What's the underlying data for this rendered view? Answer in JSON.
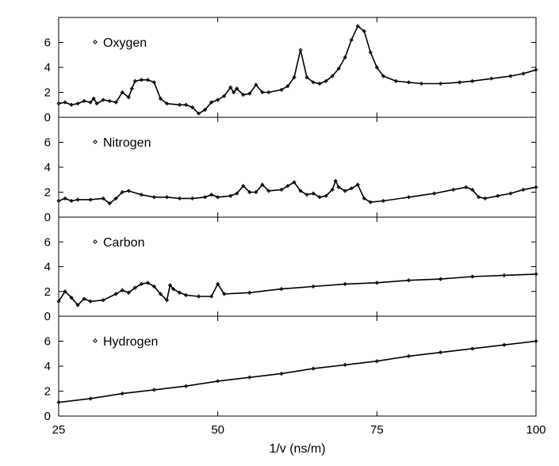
{
  "chart_data": {
    "type": "scatter",
    "layout": "stacked-panels",
    "xlabel": "1/v (ns/m)",
    "xlim": [
      25,
      100
    ],
    "x_ticks": [
      "25",
      "50",
      "75",
      "100"
    ],
    "ylim": [
      0,
      8
    ],
    "y_ticks": [
      "0",
      "2",
      "4",
      "6"
    ],
    "legend_position": "top-left",
    "marker": "diamond",
    "panels": [
      {
        "name": "Oxygen",
        "series": [
          {
            "x": 25,
            "y": 1.1
          },
          {
            "x": 26,
            "y": 1.2
          },
          {
            "x": 27,
            "y": 1.0
          },
          {
            "x": 28,
            "y": 1.1
          },
          {
            "x": 29,
            "y": 1.3
          },
          {
            "x": 30,
            "y": 1.2
          },
          {
            "x": 30.5,
            "y": 1.5
          },
          {
            "x": 31,
            "y": 1.1
          },
          {
            "x": 32,
            "y": 1.4
          },
          {
            "x": 33,
            "y": 1.3
          },
          {
            "x": 34,
            "y": 1.2
          },
          {
            "x": 35,
            "y": 2.0
          },
          {
            "x": 36,
            "y": 1.6
          },
          {
            "x": 36.5,
            "y": 2.3
          },
          {
            "x": 37,
            "y": 2.9
          },
          {
            "x": 38,
            "y": 3.0
          },
          {
            "x": 39,
            "y": 3.0
          },
          {
            "x": 40,
            "y": 2.8
          },
          {
            "x": 41,
            "y": 1.5
          },
          {
            "x": 42,
            "y": 1.1
          },
          {
            "x": 44,
            "y": 1.0
          },
          {
            "x": 45,
            "y": 1.0
          },
          {
            "x": 46,
            "y": 0.8
          },
          {
            "x": 47,
            "y": 0.3
          },
          {
            "x": 48,
            "y": 0.6
          },
          {
            "x": 49,
            "y": 1.2
          },
          {
            "x": 50,
            "y": 1.4
          },
          {
            "x": 51,
            "y": 1.7
          },
          {
            "x": 52,
            "y": 2.4
          },
          {
            "x": 52.5,
            "y": 2.0
          },
          {
            "x": 53,
            "y": 2.3
          },
          {
            "x": 54,
            "y": 1.8
          },
          {
            "x": 55,
            "y": 1.9
          },
          {
            "x": 56,
            "y": 2.6
          },
          {
            "x": 57,
            "y": 2.0
          },
          {
            "x": 58,
            "y": 2.0
          },
          {
            "x": 60,
            "y": 2.2
          },
          {
            "x": 61,
            "y": 2.5
          },
          {
            "x": 62,
            "y": 3.2
          },
          {
            "x": 63,
            "y": 5.4
          },
          {
            "x": 64,
            "y": 3.2
          },
          {
            "x": 65,
            "y": 2.8
          },
          {
            "x": 66,
            "y": 2.7
          },
          {
            "x": 67,
            "y": 2.9
          },
          {
            "x": 68,
            "y": 3.3
          },
          {
            "x": 69,
            "y": 3.9
          },
          {
            "x": 70,
            "y": 4.8
          },
          {
            "x": 71,
            "y": 6.2
          },
          {
            "x": 72,
            "y": 7.3
          },
          {
            "x": 73,
            "y": 6.9
          },
          {
            "x": 74,
            "y": 5.2
          },
          {
            "x": 75,
            "y": 4.0
          },
          {
            "x": 76,
            "y": 3.3
          },
          {
            "x": 78,
            "y": 2.9
          },
          {
            "x": 80,
            "y": 2.8
          },
          {
            "x": 82,
            "y": 2.7
          },
          {
            "x": 85,
            "y": 2.7
          },
          {
            "x": 88,
            "y": 2.8
          },
          {
            "x": 90,
            "y": 2.9
          },
          {
            "x": 93,
            "y": 3.1
          },
          {
            "x": 96,
            "y": 3.3
          },
          {
            "x": 98,
            "y": 3.5
          },
          {
            "x": 100,
            "y": 3.8
          }
        ]
      },
      {
        "name": "Nitrogen",
        "series": [
          {
            "x": 25,
            "y": 1.3
          },
          {
            "x": 26,
            "y": 1.5
          },
          {
            "x": 27,
            "y": 1.3
          },
          {
            "x": 28,
            "y": 1.4
          },
          {
            "x": 30,
            "y": 1.4
          },
          {
            "x": 32,
            "y": 1.5
          },
          {
            "x": 33,
            "y": 1.1
          },
          {
            "x": 34,
            "y": 1.5
          },
          {
            "x": 35,
            "y": 2.0
          },
          {
            "x": 36,
            "y": 2.1
          },
          {
            "x": 38,
            "y": 1.8
          },
          {
            "x": 40,
            "y": 1.6
          },
          {
            "x": 42,
            "y": 1.6
          },
          {
            "x": 44,
            "y": 1.5
          },
          {
            "x": 46,
            "y": 1.5
          },
          {
            "x": 48,
            "y": 1.6
          },
          {
            "x": 49,
            "y": 1.8
          },
          {
            "x": 50,
            "y": 1.6
          },
          {
            "x": 52,
            "y": 1.7
          },
          {
            "x": 53,
            "y": 1.9
          },
          {
            "x": 54,
            "y": 2.5
          },
          {
            "x": 55,
            "y": 2.0
          },
          {
            "x": 56,
            "y": 2.0
          },
          {
            "x": 57,
            "y": 2.6
          },
          {
            "x": 58,
            "y": 2.1
          },
          {
            "x": 60,
            "y": 2.2
          },
          {
            "x": 61,
            "y": 2.5
          },
          {
            "x": 62,
            "y": 2.8
          },
          {
            "x": 63,
            "y": 2.1
          },
          {
            "x": 64,
            "y": 1.8
          },
          {
            "x": 65,
            "y": 1.9
          },
          {
            "x": 66,
            "y": 1.6
          },
          {
            "x": 67,
            "y": 1.7
          },
          {
            "x": 68,
            "y": 2.2
          },
          {
            "x": 68.5,
            "y": 2.9
          },
          {
            "x": 69,
            "y": 2.4
          },
          {
            "x": 70,
            "y": 2.1
          },
          {
            "x": 71,
            "y": 2.3
          },
          {
            "x": 72,
            "y": 2.6
          },
          {
            "x": 73,
            "y": 1.5
          },
          {
            "x": 74,
            "y": 1.2
          },
          {
            "x": 76,
            "y": 1.3
          },
          {
            "x": 80,
            "y": 1.6
          },
          {
            "x": 84,
            "y": 1.9
          },
          {
            "x": 87,
            "y": 2.2
          },
          {
            "x": 89,
            "y": 2.4
          },
          {
            "x": 90,
            "y": 2.2
          },
          {
            "x": 91,
            "y": 1.6
          },
          {
            "x": 92,
            "y": 1.5
          },
          {
            "x": 94,
            "y": 1.7
          },
          {
            "x": 96,
            "y": 1.9
          },
          {
            "x": 98,
            "y": 2.2
          },
          {
            "x": 100,
            "y": 2.4
          }
        ]
      },
      {
        "name": "Carbon",
        "series": [
          {
            "x": 25,
            "y": 1.2
          },
          {
            "x": 26,
            "y": 2.0
          },
          {
            "x": 27,
            "y": 1.5
          },
          {
            "x": 28,
            "y": 0.9
          },
          {
            "x": 29,
            "y": 1.4
          },
          {
            "x": 30,
            "y": 1.2
          },
          {
            "x": 32,
            "y": 1.3
          },
          {
            "x": 34,
            "y": 1.8
          },
          {
            "x": 35,
            "y": 2.1
          },
          {
            "x": 36,
            "y": 1.9
          },
          {
            "x": 37,
            "y": 2.3
          },
          {
            "x": 38,
            "y": 2.6
          },
          {
            "x": 39,
            "y": 2.7
          },
          {
            "x": 40,
            "y": 2.4
          },
          {
            "x": 41,
            "y": 1.8
          },
          {
            "x": 42,
            "y": 1.3
          },
          {
            "x": 42.5,
            "y": 2.5
          },
          {
            "x": 43,
            "y": 2.2
          },
          {
            "x": 44,
            "y": 1.9
          },
          {
            "x": 45,
            "y": 1.7
          },
          {
            "x": 47,
            "y": 1.6
          },
          {
            "x": 49,
            "y": 1.6
          },
          {
            "x": 50,
            "y": 2.6
          },
          {
            "x": 51,
            "y": 1.8
          },
          {
            "x": 55,
            "y": 1.9
          },
          {
            "x": 60,
            "y": 2.2
          },
          {
            "x": 65,
            "y": 2.4
          },
          {
            "x": 70,
            "y": 2.6
          },
          {
            "x": 75,
            "y": 2.7
          },
          {
            "x": 80,
            "y": 2.9
          },
          {
            "x": 85,
            "y": 3.0
          },
          {
            "x": 90,
            "y": 3.2
          },
          {
            "x": 95,
            "y": 3.3
          },
          {
            "x": 100,
            "y": 3.4
          }
        ]
      },
      {
        "name": "Hydrogen",
        "series": [
          {
            "x": 25,
            "y": 1.1
          },
          {
            "x": 30,
            "y": 1.4
          },
          {
            "x": 35,
            "y": 1.8
          },
          {
            "x": 40,
            "y": 2.1
          },
          {
            "x": 45,
            "y": 2.4
          },
          {
            "x": 50,
            "y": 2.8
          },
          {
            "x": 55,
            "y": 3.1
          },
          {
            "x": 60,
            "y": 3.4
          },
          {
            "x": 65,
            "y": 3.8
          },
          {
            "x": 70,
            "y": 4.1
          },
          {
            "x": 75,
            "y": 4.4
          },
          {
            "x": 80,
            "y": 4.8
          },
          {
            "x": 85,
            "y": 5.1
          },
          {
            "x": 90,
            "y": 5.4
          },
          {
            "x": 95,
            "y": 5.7
          },
          {
            "x": 100,
            "y": 6.0
          }
        ]
      }
    ]
  },
  "colors": {
    "background": "#ffffff",
    "axis": "#000000",
    "marker": "#000000"
  }
}
